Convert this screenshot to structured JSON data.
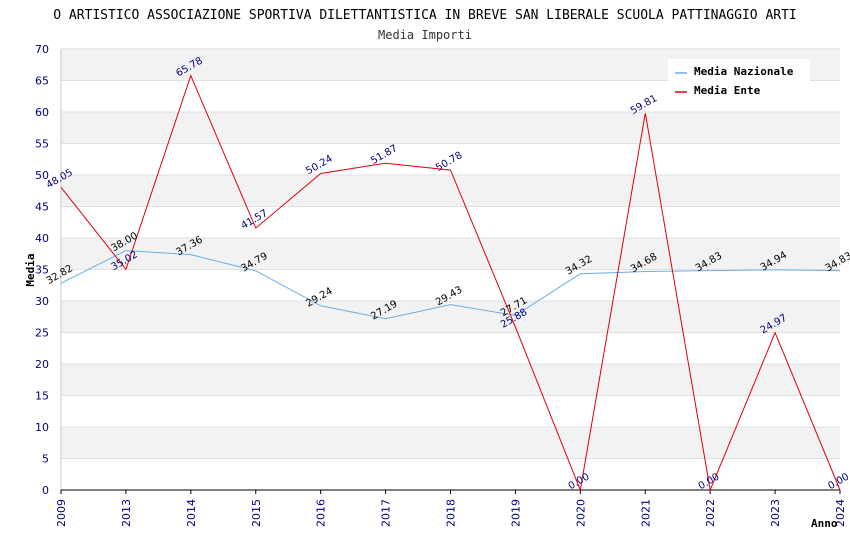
{
  "chart_data": {
    "type": "line",
    "title": "O ARTISTICO ASSOCIAZIONE SPORTIVA DILETTANTISTICA IN BREVE SAN LIBERALE SCUOLA PATTINAGGIO ARTI",
    "subtitle": "Media Importi",
    "xlabel": "Anno",
    "ylabel": "Media",
    "ylim": [
      0,
      70
    ],
    "yticks": [
      0,
      5,
      10,
      15,
      20,
      25,
      30,
      35,
      40,
      45,
      50,
      55,
      60,
      65,
      70
    ],
    "categories": [
      "2009",
      "2013",
      "2014",
      "2015",
      "2016",
      "2017",
      "2018",
      "2019",
      "2020",
      "2021",
      "2022",
      "2023",
      "2024"
    ],
    "series": [
      {
        "name": "Media Nazionale",
        "color": "#6aaee6",
        "values": [
          32.82,
          38.0,
          37.36,
          34.79,
          29.24,
          27.19,
          29.43,
          27.71,
          34.32,
          34.68,
          34.83,
          34.94,
          34.83
        ],
        "labels": [
          "32.82",
          "38.00",
          "37.36",
          "34.79",
          "29.24",
          "27.19",
          "29.43",
          "27.71",
          "34.32",
          "34.68",
          "34.83",
          "34.94",
          "34.83"
        ]
      },
      {
        "name": "Media Ente",
        "color": "#e0000b",
        "values": [
          48.05,
          35.02,
          65.78,
          41.57,
          50.24,
          51.87,
          50.78,
          25.88,
          0.0,
          59.81,
          0.0,
          24.97,
          0.0
        ],
        "labels": [
          "48.05",
          "35.02",
          "65.78",
          "41.57",
          "50.24",
          "51.87",
          "50.78",
          "25.88",
          "0.00",
          "59.81",
          "0.00",
          "24.97",
          "0.00"
        ]
      }
    ],
    "legend": "top-right",
    "grid": true
  }
}
